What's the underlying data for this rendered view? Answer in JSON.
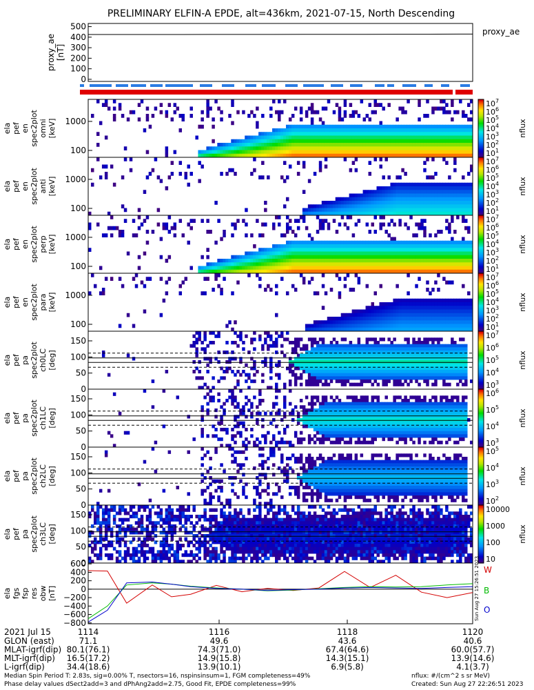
{
  "title": "PRELIMINARY ELFIN-A EPDE, alt=436km, 2021-07-15, North Descending",
  "chart_data": [
    {
      "panel": "proxy_ae",
      "type": "line",
      "ylabel": "proxy_ae\n[nT]",
      "legend": "proxy_ae",
      "yticks": [
        "500",
        "400",
        "300",
        "200",
        "100",
        "0"
      ],
      "ylim": [
        -20,
        530
      ],
      "x": [
        0,
        0.5,
        1,
        1.5,
        2,
        2.5,
        3,
        3.5,
        4,
        4.5,
        5,
        5.5,
        6,
        6.2
      ],
      "values": [
        425,
        425,
        425,
        425,
        426,
        426,
        426,
        427,
        427,
        427,
        428,
        428,
        429,
        429
      ]
    },
    {
      "panel": "ela_pef_en_spec2plot_omni",
      "type": "heatmap",
      "ylabel": "ela\npef\nen\nspec2plot\nomni\n[keV]",
      "yticks": [
        "1000",
        "100"
      ],
      "yscale": "log",
      "colorbar": {
        "label": "nflux",
        "ticks": [
          "10",
          "10",
          "10",
          "10",
          "10",
          "10",
          "10"
        ],
        "exponents": [
          "7",
          "6",
          "5",
          "4",
          "3",
          "2",
          "1"
        ]
      }
    },
    {
      "panel": "ela_pef_en_spec2plot_anti",
      "type": "heatmap",
      "ylabel": "ela\npef\nen\nspec2plot\nanti\n[keV]",
      "yticks": [
        "1000",
        "100"
      ],
      "yscale": "log",
      "colorbar": {
        "label": "nflux",
        "ticks": [
          "10",
          "10",
          "10",
          "10",
          "10",
          "10",
          "10"
        ],
        "exponents": [
          "7",
          "6",
          "5",
          "4",
          "3",
          "2",
          "1"
        ]
      }
    },
    {
      "panel": "ela_pef_en_spec2plot_perp",
      "type": "heatmap",
      "ylabel": "ela\npef\nen\nspec2plot\nperp\n[keV]",
      "yticks": [
        "1000",
        "100"
      ],
      "yscale": "log",
      "colorbar": {
        "label": "nflux",
        "ticks": [
          "10",
          "10",
          "10",
          "10",
          "10",
          "10",
          "10"
        ],
        "exponents": [
          "7",
          "6",
          "5",
          "4",
          "3",
          "2",
          "1"
        ]
      }
    },
    {
      "panel": "ela_pef_en_spec2plot_para",
      "type": "heatmap",
      "ylabel": "ela\npef\nen\nspec2plot\npara\n[keV]",
      "yticks": [
        "1000",
        "100"
      ],
      "yscale": "log",
      "colorbar": {
        "label": "nflux",
        "ticks": [
          "10",
          "10",
          "10",
          "10",
          "10",
          "10",
          "10"
        ],
        "exponents": [
          "7",
          "6",
          "5",
          "4",
          "3",
          "2",
          "1"
        ]
      }
    },
    {
      "panel": "ela_pef_pa_spec2plot_ch0LC",
      "type": "heatmap",
      "ylabel": "ela\npef\npa\nspec2plot\nch0LC\n[deg]",
      "yticks": [
        "150",
        "100",
        "50",
        "0"
      ],
      "ylim": [
        0,
        180
      ],
      "colorbar": {
        "label": "nflux",
        "ticks": [
          "10",
          "10",
          "10",
          "10",
          "10"
        ],
        "exponents": [
          "7",
          "6",
          "5",
          "4",
          "3"
        ]
      }
    },
    {
      "panel": "ela_pef_pa_spec2plot_ch1LC",
      "type": "heatmap",
      "ylabel": "ela\npef\npa\nspec2plot\nch1LC\n[deg]",
      "yticks": [
        "150",
        "100",
        "50",
        "0"
      ],
      "ylim": [
        0,
        180
      ],
      "colorbar": {
        "label": "nflux",
        "ticks": [
          "10",
          "10",
          "10",
          "10"
        ],
        "exponents": [
          "6",
          "5",
          "4",
          "3"
        ]
      }
    },
    {
      "panel": "ela_pef_pa_spec2plot_ch2LC",
      "type": "heatmap",
      "ylabel": "ela\npef\npa\nspec2plot\nch2LC\n[deg]",
      "yticks": [
        "150",
        "100",
        "50",
        "0"
      ],
      "ylim": [
        0,
        180
      ],
      "colorbar": {
        "label": "nflux",
        "ticks": [
          "10",
          "10",
          "10",
          "10"
        ],
        "exponents": [
          "5",
          "4",
          "3",
          "2"
        ]
      }
    },
    {
      "panel": "ela_pef_pa_spec2plot_ch3LC",
      "type": "heatmap",
      "ylabel": "ela\npef\npa\nspec2plot\nch3LC\n[deg]",
      "yticks": [
        "150",
        "100",
        "50",
        "0"
      ],
      "ylim": [
        0,
        180
      ],
      "colorbar": {
        "label": "nflux",
        "ticks": [
          "10000",
          "1000",
          "100",
          "10"
        ],
        "exponents": [
          "",
          "",
          "",
          ""
        ]
      }
    },
    {
      "panel": "ela_fgs_fsp_res_obw",
      "type": "line",
      "ylabel": "ela\nfgs\nfsp\nres\nobw\n[nT]",
      "yticks": [
        "600",
        "400",
        "200",
        "0",
        "−200",
        "−400",
        "−600",
        "−800"
      ],
      "ylim": [
        -820,
        620
      ],
      "x": [
        0,
        0.3,
        0.6,
        1.0,
        1.3,
        1.6,
        2.0,
        2.4,
        2.8,
        3.2,
        3.6,
        4.0,
        4.4,
        4.8,
        5.2,
        5.6,
        6.0
      ],
      "series": [
        {
          "name": "W",
          "color": "#d40000",
          "values": [
            440,
            430,
            -330,
            100,
            -180,
            -120,
            90,
            -60,
            20,
            -30,
            30,
            420,
            40,
            330,
            -70,
            -200,
            -80
          ]
        },
        {
          "name": "B",
          "color": "#00bb00",
          "values": [
            -700,
            -400,
            100,
            150,
            120,
            70,
            30,
            0,
            -40,
            -20,
            10,
            40,
            60,
            50,
            60,
            100,
            130
          ]
        },
        {
          "name": "O",
          "color": "#0000cc",
          "values": [
            -780,
            -500,
            150,
            170,
            120,
            60,
            20,
            0,
            -30,
            -10,
            0,
            30,
            40,
            30,
            20,
            40,
            60
          ]
        }
      ],
      "side_note": "Sun Aug 27 15:26:51 2023"
    }
  ],
  "time_axis": {
    "date_label": "2021 Jul 15",
    "ticks": [
      "1114",
      "1116",
      "1118",
      "1120"
    ],
    "rows": [
      {
        "label": "GLON (east)",
        "values": [
          "71.1",
          "49.6",
          "43.6",
          "40.6"
        ]
      },
      {
        "label": "MLAT-igrf(dip)",
        "values": [
          "80.1(76.1)",
          "74.3(71.0)",
          "67.4(64.6)",
          "60.0(57.7)"
        ]
      },
      {
        "label": "MLT-igrf(dip)",
        "values": [
          "16.5(17.2)",
          "14.9(15.8)",
          "14.3(15.1)",
          "13.9(14.6)"
        ]
      },
      {
        "label": "L-igrf(dip)",
        "values": [
          "34.4(18.6)",
          "13.9(10.1)",
          "6.9(5.8)",
          "4.1(3.7)"
        ]
      }
    ]
  },
  "footer": {
    "line1": "Median Spin Period T: 2.83s, sig=0.00% T, nsectors=16, nspinsinsum=1, FGM completeness=49%",
    "line2": "Phase delay values dSect2add=3 and dPhAng2add=2.75, Good Fit, EPDE completeness=99%",
    "units": "nflux: #/(cm^2 s sr MeV)",
    "created": "Created: Sun Aug 27 22:26:51 2023"
  }
}
